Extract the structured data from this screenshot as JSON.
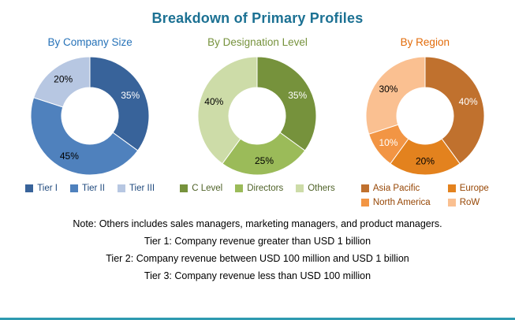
{
  "title": "Breakdown of Primary Profiles",
  "colors": {
    "title": "#1C7193",
    "bottom_rule": "#2E9AB0"
  },
  "notes": [
    "Note: Others includes sales managers, marketing managers, and product managers.",
    "Tier 1: Company revenue greater than USD 1 billion",
    "Tier 2: Company revenue between USD 100 million and USD 1 billion",
    "Tier 3: Company revenue less than USD 100 million"
  ],
  "chart_data": [
    {
      "type": "pie",
      "subtype": "donut",
      "hole": 0.48,
      "title": "By Company Size",
      "title_color": "#2672B8",
      "legend_position": "bottom",
      "legend_text_color": "#1F497D",
      "legend_columns": 3,
      "segments": [
        {
          "label": "Tier I",
          "value": 35,
          "unit": "%",
          "color": "#38639A",
          "label_color": "#FFFFFF"
        },
        {
          "label": "Tier II",
          "value": 45,
          "unit": "%",
          "color": "#4F81BD",
          "label_color": "#000000"
        },
        {
          "label": "Tier III",
          "value": 20,
          "unit": "%",
          "color": "#B7C7E2",
          "label_color": "#000000"
        }
      ]
    },
    {
      "type": "pie",
      "subtype": "donut",
      "hole": 0.48,
      "title": "By Designation Level",
      "title_color": "#76923C",
      "legend_position": "bottom",
      "legend_text_color": "#4F6228",
      "legend_columns": 3,
      "segments": [
        {
          "label": "C Level",
          "value": 35,
          "unit": "%",
          "color": "#76923C",
          "label_color": "#FFFFFF"
        },
        {
          "label": "Directors",
          "value": 25,
          "unit": "%",
          "color": "#9BBB59",
          "label_color": "#000000"
        },
        {
          "label": "Others",
          "value": 40,
          "unit": "%",
          "color": "#CDDCA8",
          "label_color": "#000000"
        }
      ]
    },
    {
      "type": "pie",
      "subtype": "donut",
      "hole": 0.48,
      "title": "By Region",
      "title_color": "#E26B0A",
      "legend_position": "bottom",
      "legend_text_color": "#974706",
      "legend_columns": 2,
      "segments": [
        {
          "label": "Asia Pacific",
          "value": 40,
          "unit": "%",
          "color": "#C0712E",
          "label_color": "#FFFFFF"
        },
        {
          "label": "Europe",
          "value": 20,
          "unit": "%",
          "color": "#E3821E",
          "label_color": "#000000"
        },
        {
          "label": "North America",
          "value": 10,
          "unit": "%",
          "color": "#F29544",
          "label_color": "#FFFFFF"
        },
        {
          "label": "RoW",
          "value": 30,
          "unit": "%",
          "color": "#FAC091",
          "label_color": "#000000"
        }
      ]
    }
  ]
}
